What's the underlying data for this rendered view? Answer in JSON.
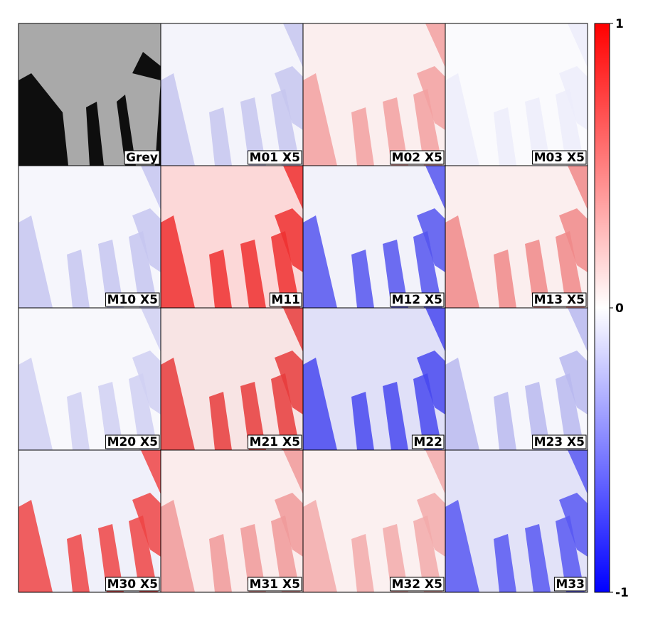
{
  "chart_data": {
    "type": "imagegrid",
    "panels": [
      {
        "label": "Grey",
        "colors": [
          "#a9a9a9",
          "#0e0e0e"
        ]
      },
      {
        "label": "M01 X5",
        "colors": [
          "#f4f4fb",
          "#c6c6ee"
        ]
      },
      {
        "label": "M02 X5",
        "colors": [
          "#fbeeee",
          "#f2a0a0"
        ]
      },
      {
        "label": "M03 X5",
        "colors": [
          "#fafafd",
          "#ececfa"
        ]
      },
      {
        "label": "M10 X5",
        "colors": [
          "#f6f6fc",
          "#c6c6f0"
        ]
      },
      {
        "label": "M11",
        "colors": [
          "#fcd8d8",
          "#ee3030"
        ]
      },
      {
        "label": "M12 X5",
        "colors": [
          "#f2f2fa",
          "#5555ee"
        ]
      },
      {
        "label": "M13 X5",
        "colors": [
          "#fbeeee",
          "#f08888"
        ]
      },
      {
        "label": "M20 X5",
        "colors": [
          "#f8f8fc",
          "#d0d0f2"
        ]
      },
      {
        "label": "M21 X5",
        "colors": [
          "#f8e4e4",
          "#e83c3c"
        ]
      },
      {
        "label": "M22",
        "colors": [
          "#e0e0f8",
          "#4848f0"
        ]
      },
      {
        "label": "M23 X5",
        "colors": [
          "#f6f6fc",
          "#b8b8ee"
        ]
      },
      {
        "label": "M30 X5",
        "colors": [
          "#f0f0fa",
          "#ee4444"
        ]
      },
      {
        "label": "M31 X5",
        "colors": [
          "#fbecec",
          "#f09a9a"
        ]
      },
      {
        "label": "M32 X5",
        "colors": [
          "#fbf0f0",
          "#f2aaaa"
        ]
      },
      {
        "label": "M33",
        "colors": [
          "#e2e2f8",
          "#5858f2"
        ]
      }
    ],
    "colorbar": {
      "lim": [
        -1,
        1
      ],
      "ticks": [
        1,
        0,
        -1
      ],
      "colors": [
        "#0000ff",
        "#ffffff",
        "#ff0000"
      ]
    }
  }
}
